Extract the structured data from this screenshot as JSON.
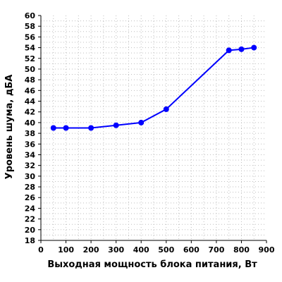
{
  "chart_data": {
    "type": "line",
    "title": "",
    "xlabel": "Выходная мощность блока питания, Вт",
    "ylabel": "Уровень шума, дБА",
    "xlim": [
      0,
      900
    ],
    "ylim": [
      18,
      60
    ],
    "x_ticks": [
      0,
      100,
      200,
      300,
      400,
      500,
      600,
      700,
      800,
      900
    ],
    "y_ticks": [
      18,
      20,
      22,
      24,
      26,
      28,
      30,
      32,
      34,
      36,
      38,
      40,
      42,
      44,
      46,
      48,
      50,
      52,
      54,
      56,
      58,
      60
    ],
    "grid": true,
    "legend": "none",
    "series": [
      {
        "color": "#0000ff",
        "x": [
          50,
          100,
          200,
          300,
          400,
          500,
          750,
          800,
          850
        ],
        "y": [
          39.0,
          39.0,
          39.0,
          39.5,
          40.0,
          42.5,
          53.5,
          53.7,
          54.0
        ]
      }
    ]
  }
}
